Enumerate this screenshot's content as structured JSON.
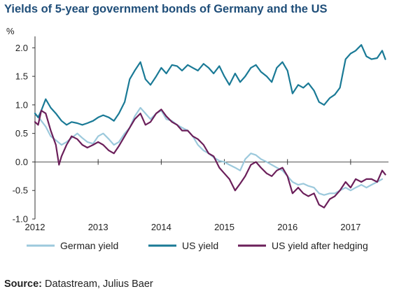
{
  "title": "Yields of 5-year government bonds of Germany and the US",
  "source": {
    "label": "Source:",
    "text": "Datastream, Julius Baer"
  },
  "colors": {
    "german": "#9cc9dc",
    "us": "#1a7a96",
    "hedged": "#6b1f5a",
    "axis": "#333333",
    "zero_line": "#555555"
  },
  "chart_data": {
    "type": "line",
    "ylabel": "%",
    "ylim": [
      -1.0,
      2.2
    ],
    "xlim": [
      2012.0,
      2017.6
    ],
    "yticks": [
      {
        "value": 2.0,
        "label": "2.0"
      },
      {
        "value": 1.5,
        "label": "1.5"
      },
      {
        "value": 1.0,
        "label": "1.0"
      },
      {
        "value": 0.5,
        "label": "0.5"
      },
      {
        "value": 0.0,
        "label": "0.0"
      },
      {
        "value": -0.5,
        "label": "-0.5"
      },
      {
        "value": -1.0,
        "label": "-1.0"
      }
    ],
    "xticks": [
      {
        "value": 2012,
        "label": "2012"
      },
      {
        "value": 2013,
        "label": "2013"
      },
      {
        "value": 2014,
        "label": "2014"
      },
      {
        "value": 2015,
        "label": "2015"
      },
      {
        "value": 2016,
        "label": "2016"
      },
      {
        "value": 2017,
        "label": "2017"
      }
    ],
    "grid": false,
    "legend_position": "bottom",
    "series": [
      {
        "name": "German yield",
        "color_key": "german",
        "points": [
          [
            2012.0,
            0.85
          ],
          [
            2012.08,
            0.75
          ],
          [
            2012.17,
            0.62
          ],
          [
            2012.25,
            0.45
          ],
          [
            2012.33,
            0.38
          ],
          [
            2012.42,
            0.3
          ],
          [
            2012.5,
            0.35
          ],
          [
            2012.58,
            0.42
          ],
          [
            2012.67,
            0.5
          ],
          [
            2012.75,
            0.42
          ],
          [
            2012.83,
            0.35
          ],
          [
            2012.92,
            0.32
          ],
          [
            2013.0,
            0.45
          ],
          [
            2013.08,
            0.5
          ],
          [
            2013.17,
            0.4
          ],
          [
            2013.25,
            0.3
          ],
          [
            2013.33,
            0.35
          ],
          [
            2013.42,
            0.5
          ],
          [
            2013.5,
            0.6
          ],
          [
            2013.58,
            0.8
          ],
          [
            2013.67,
            0.95
          ],
          [
            2013.75,
            0.85
          ],
          [
            2013.83,
            0.75
          ],
          [
            2013.92,
            0.85
          ],
          [
            2014.0,
            0.9
          ],
          [
            2014.08,
            0.75
          ],
          [
            2014.17,
            0.72
          ],
          [
            2014.25,
            0.65
          ],
          [
            2014.33,
            0.6
          ],
          [
            2014.42,
            0.55
          ],
          [
            2014.5,
            0.45
          ],
          [
            2014.58,
            0.3
          ],
          [
            2014.67,
            0.2
          ],
          [
            2014.75,
            0.15
          ],
          [
            2014.83,
            0.08
          ],
          [
            2014.92,
            0.02
          ],
          [
            2015.0,
            0.0
          ],
          [
            2015.08,
            -0.05
          ],
          [
            2015.17,
            -0.1
          ],
          [
            2015.25,
            -0.15
          ],
          [
            2015.33,
            0.05
          ],
          [
            2015.42,
            0.15
          ],
          [
            2015.5,
            0.12
          ],
          [
            2015.58,
            0.05
          ],
          [
            2015.67,
            0.0
          ],
          [
            2015.75,
            -0.05
          ],
          [
            2015.83,
            -0.1
          ],
          [
            2015.92,
            -0.15
          ],
          [
            2016.0,
            -0.25
          ],
          [
            2016.08,
            -0.35
          ],
          [
            2016.17,
            -0.4
          ],
          [
            2016.25,
            -0.38
          ],
          [
            2016.33,
            -0.42
          ],
          [
            2016.42,
            -0.45
          ],
          [
            2016.5,
            -0.55
          ],
          [
            2016.58,
            -0.58
          ],
          [
            2016.67,
            -0.55
          ],
          [
            2016.75,
            -0.55
          ],
          [
            2016.83,
            -0.5
          ],
          [
            2016.92,
            -0.45
          ],
          [
            2017.0,
            -0.5
          ],
          [
            2017.08,
            -0.45
          ],
          [
            2017.17,
            -0.4
          ],
          [
            2017.25,
            -0.45
          ],
          [
            2017.33,
            -0.4
          ],
          [
            2017.42,
            -0.35
          ],
          [
            2017.5,
            -0.3
          ]
        ]
      },
      {
        "name": "US yield",
        "color_key": "us",
        "points": [
          [
            2012.0,
            0.85
          ],
          [
            2012.05,
            0.78
          ],
          [
            2012.1,
            0.9
          ],
          [
            2012.17,
            1.1
          ],
          [
            2012.25,
            0.95
          ],
          [
            2012.33,
            0.85
          ],
          [
            2012.42,
            0.72
          ],
          [
            2012.5,
            0.65
          ],
          [
            2012.58,
            0.7
          ],
          [
            2012.67,
            0.68
          ],
          [
            2012.75,
            0.65
          ],
          [
            2012.83,
            0.68
          ],
          [
            2012.92,
            0.72
          ],
          [
            2013.0,
            0.78
          ],
          [
            2013.08,
            0.82
          ],
          [
            2013.17,
            0.78
          ],
          [
            2013.25,
            0.72
          ],
          [
            2013.33,
            0.85
          ],
          [
            2013.42,
            1.05
          ],
          [
            2013.5,
            1.45
          ],
          [
            2013.58,
            1.6
          ],
          [
            2013.67,
            1.75
          ],
          [
            2013.75,
            1.45
          ],
          [
            2013.83,
            1.35
          ],
          [
            2013.92,
            1.5
          ],
          [
            2014.0,
            1.65
          ],
          [
            2014.08,
            1.55
          ],
          [
            2014.17,
            1.7
          ],
          [
            2014.25,
            1.68
          ],
          [
            2014.33,
            1.6
          ],
          [
            2014.42,
            1.7
          ],
          [
            2014.5,
            1.65
          ],
          [
            2014.58,
            1.6
          ],
          [
            2014.67,
            1.72
          ],
          [
            2014.75,
            1.65
          ],
          [
            2014.83,
            1.55
          ],
          [
            2014.92,
            1.68
          ],
          [
            2015.0,
            1.5
          ],
          [
            2015.08,
            1.35
          ],
          [
            2015.17,
            1.55
          ],
          [
            2015.25,
            1.4
          ],
          [
            2015.33,
            1.5
          ],
          [
            2015.42,
            1.65
          ],
          [
            2015.5,
            1.7
          ],
          [
            2015.58,
            1.58
          ],
          [
            2015.67,
            1.5
          ],
          [
            2015.75,
            1.4
          ],
          [
            2015.83,
            1.65
          ],
          [
            2015.92,
            1.75
          ],
          [
            2016.0,
            1.6
          ],
          [
            2016.08,
            1.2
          ],
          [
            2016.17,
            1.35
          ],
          [
            2016.25,
            1.3
          ],
          [
            2016.33,
            1.38
          ],
          [
            2016.42,
            1.25
          ],
          [
            2016.5,
            1.05
          ],
          [
            2016.58,
            1.0
          ],
          [
            2016.67,
            1.12
          ],
          [
            2016.75,
            1.18
          ],
          [
            2016.83,
            1.3
          ],
          [
            2016.92,
            1.8
          ],
          [
            2017.0,
            1.9
          ],
          [
            2017.08,
            1.95
          ],
          [
            2017.17,
            2.05
          ],
          [
            2017.25,
            1.85
          ],
          [
            2017.33,
            1.8
          ],
          [
            2017.42,
            1.82
          ],
          [
            2017.5,
            1.95
          ],
          [
            2017.55,
            1.8
          ]
        ]
      },
      {
        "name": "US yield after hedging",
        "color_key": "hedged",
        "points": [
          [
            2012.0,
            0.7
          ],
          [
            2012.05,
            0.65
          ],
          [
            2012.1,
            0.9
          ],
          [
            2012.17,
            0.85
          ],
          [
            2012.25,
            0.55
          ],
          [
            2012.33,
            0.3
          ],
          [
            2012.38,
            -0.05
          ],
          [
            2012.42,
            0.1
          ],
          [
            2012.5,
            0.3
          ],
          [
            2012.58,
            0.45
          ],
          [
            2012.67,
            0.4
          ],
          [
            2012.75,
            0.3
          ],
          [
            2012.83,
            0.25
          ],
          [
            2012.92,
            0.3
          ],
          [
            2013.0,
            0.35
          ],
          [
            2013.08,
            0.3
          ],
          [
            2013.17,
            0.2
          ],
          [
            2013.25,
            0.15
          ],
          [
            2013.33,
            0.28
          ],
          [
            2013.42,
            0.45
          ],
          [
            2013.5,
            0.6
          ],
          [
            2013.58,
            0.75
          ],
          [
            2013.67,
            0.85
          ],
          [
            2013.75,
            0.65
          ],
          [
            2013.83,
            0.7
          ],
          [
            2013.92,
            0.85
          ],
          [
            2014.0,
            0.92
          ],
          [
            2014.08,
            0.8
          ],
          [
            2014.17,
            0.7
          ],
          [
            2014.25,
            0.65
          ],
          [
            2014.33,
            0.55
          ],
          [
            2014.42,
            0.55
          ],
          [
            2014.5,
            0.45
          ],
          [
            2014.58,
            0.4
          ],
          [
            2014.67,
            0.3
          ],
          [
            2014.75,
            0.15
          ],
          [
            2014.83,
            0.1
          ],
          [
            2014.92,
            -0.1
          ],
          [
            2015.0,
            -0.2
          ],
          [
            2015.08,
            -0.3
          ],
          [
            2015.17,
            -0.5
          ],
          [
            2015.25,
            -0.38
          ],
          [
            2015.33,
            -0.25
          ],
          [
            2015.42,
            -0.05
          ],
          [
            2015.5,
            0.0
          ],
          [
            2015.58,
            -0.1
          ],
          [
            2015.67,
            -0.2
          ],
          [
            2015.75,
            -0.25
          ],
          [
            2015.83,
            -0.15
          ],
          [
            2015.92,
            -0.1
          ],
          [
            2016.0,
            -0.25
          ],
          [
            2016.08,
            -0.55
          ],
          [
            2016.17,
            -0.45
          ],
          [
            2016.25,
            -0.55
          ],
          [
            2016.33,
            -0.6
          ],
          [
            2016.42,
            -0.55
          ],
          [
            2016.5,
            -0.75
          ],
          [
            2016.58,
            -0.8
          ],
          [
            2016.67,
            -0.65
          ],
          [
            2016.75,
            -0.6
          ],
          [
            2016.83,
            -0.5
          ],
          [
            2016.92,
            -0.35
          ],
          [
            2017.0,
            -0.45
          ],
          [
            2017.08,
            -0.3
          ],
          [
            2017.17,
            -0.35
          ],
          [
            2017.25,
            -0.3
          ],
          [
            2017.33,
            -0.3
          ],
          [
            2017.42,
            -0.35
          ],
          [
            2017.5,
            -0.15
          ],
          [
            2017.55,
            -0.22
          ]
        ]
      }
    ]
  }
}
